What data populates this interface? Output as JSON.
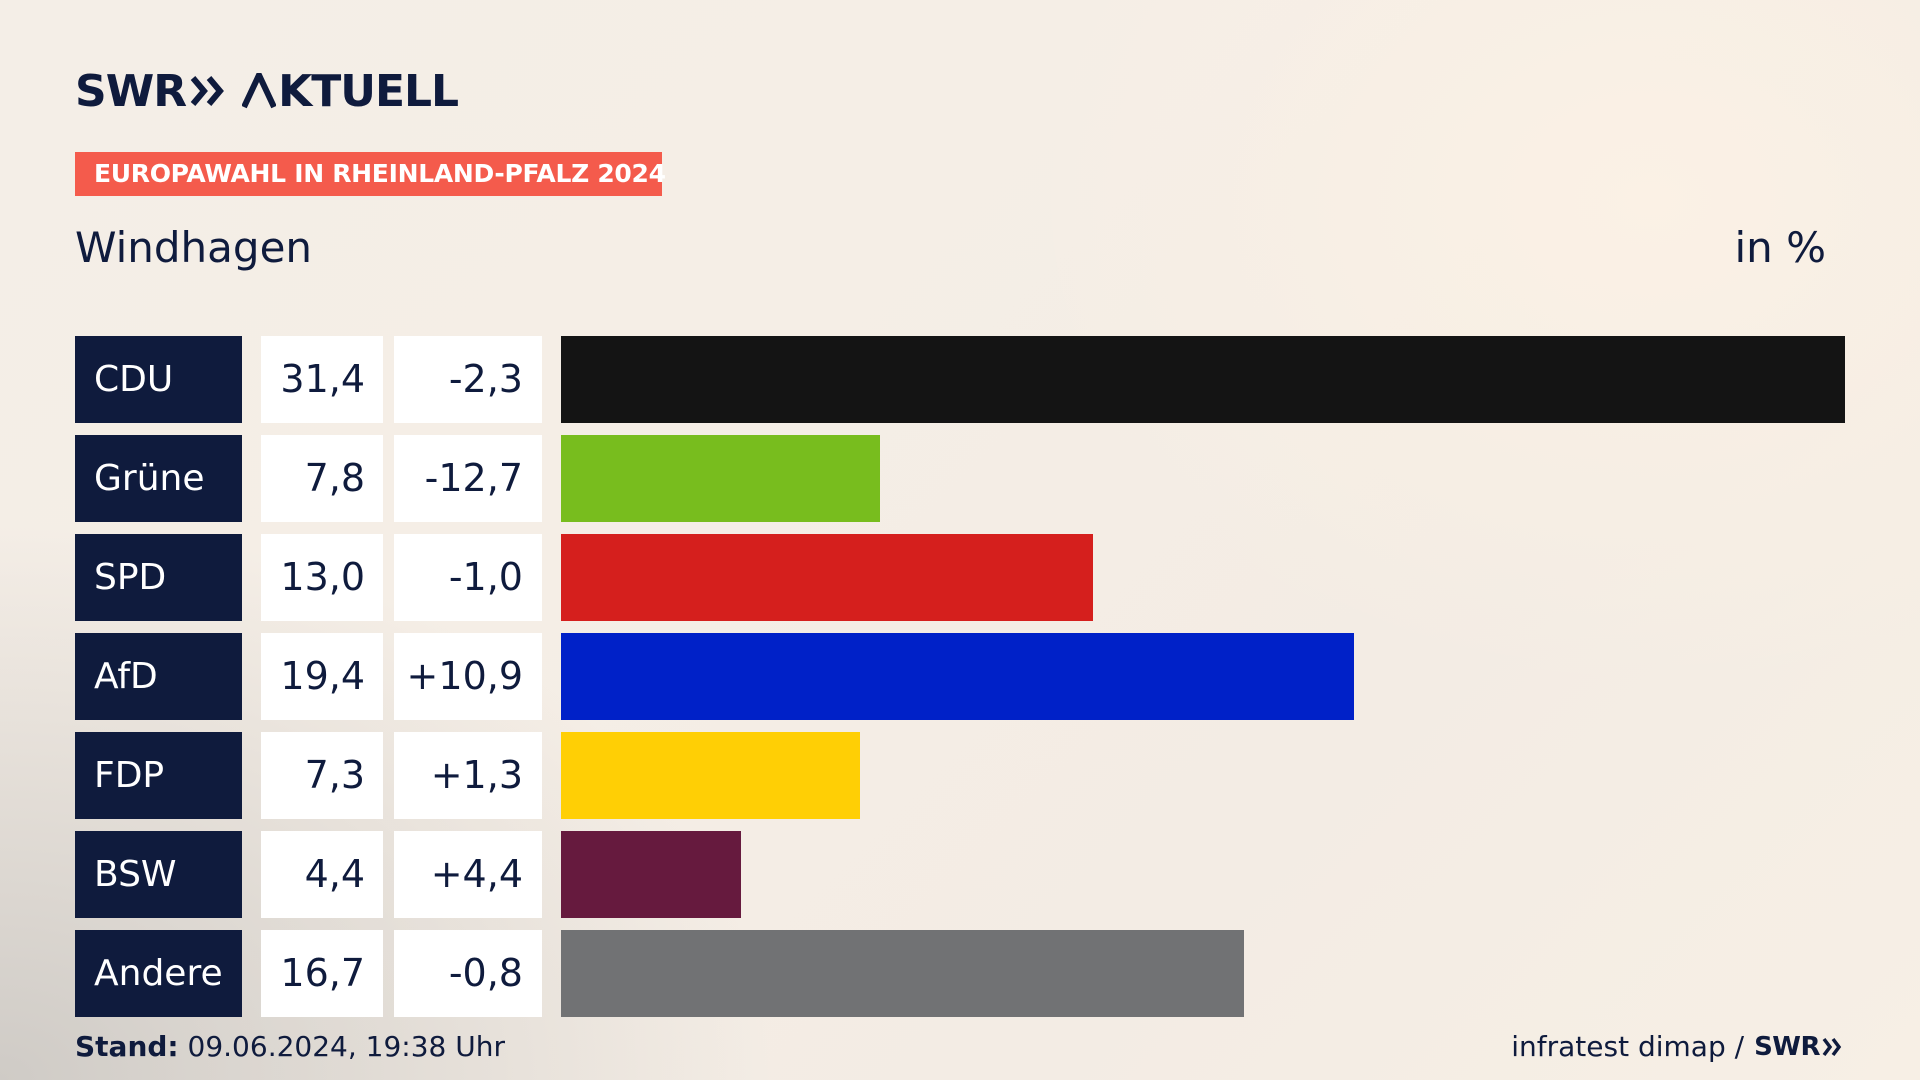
{
  "header": {
    "logo_left": "SWR",
    "logo_right": "AKTUELL",
    "tag": "EUROPAWAHL IN RHEINLAND-PFALZ 2024",
    "location": "Windhagen",
    "unit": "in %"
  },
  "colors": {
    "navy": "#0f1b3d",
    "tag": "#f45b4c"
  },
  "chart_data": {
    "type": "bar",
    "orientation": "horizontal",
    "categories": [
      "CDU",
      "Grüne",
      "SPD",
      "AfD",
      "FDP",
      "BSW",
      "Andere"
    ],
    "values": [
      31.4,
      7.8,
      13.0,
      19.4,
      7.3,
      4.4,
      16.7
    ],
    "value_labels": [
      "31,4",
      "7,8",
      "13,0",
      "19,4",
      "7,3",
      "4,4",
      "16,7"
    ],
    "diff_labels": [
      "-2,3",
      "-12,7",
      "-1,0",
      "+10,9",
      "+1,3",
      "+4,4",
      "-0,8"
    ],
    "colors": [
      "#141414",
      "#78bd1e",
      "#d51f1d",
      "#0021c8",
      "#ffcf05",
      "#661a3e",
      "#717274"
    ],
    "xlim": [
      0,
      31.4
    ]
  },
  "footer": {
    "stand_label": "Stand:",
    "stand_value": "09.06.2024, 19:38 Uhr",
    "source": "infratest dimap /",
    "source_logo": "SWR"
  }
}
